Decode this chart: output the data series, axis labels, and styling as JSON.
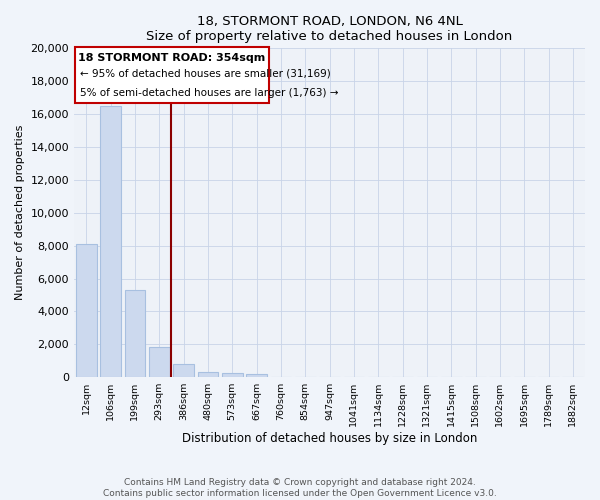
{
  "title": "18, STORMONT ROAD, LONDON, N6 4NL",
  "subtitle": "Size of property relative to detached houses in London",
  "xlabel": "Distribution of detached houses by size in London",
  "ylabel": "Number of detached properties",
  "bar_labels": [
    "12sqm",
    "106sqm",
    "199sqm",
    "293sqm",
    "386sqm",
    "480sqm",
    "573sqm",
    "667sqm",
    "760sqm",
    "854sqm",
    "947sqm",
    "1041sqm",
    "1134sqm",
    "1228sqm",
    "1321sqm",
    "1415sqm",
    "1508sqm",
    "1602sqm",
    "1695sqm",
    "1789sqm",
    "1882sqm"
  ],
  "bar_values": [
    8100,
    16500,
    5300,
    1850,
    800,
    300,
    250,
    200,
    0,
    0,
    0,
    0,
    0,
    0,
    0,
    0,
    0,
    0,
    0,
    0,
    0
  ],
  "bar_color": "#ccd9ee",
  "bar_edge_color": "#a8c0e0",
  "vline_x_index": 3.5,
  "vline_color": "#8b0000",
  "ylim": [
    0,
    20000
  ],
  "yticks": [
    0,
    2000,
    4000,
    6000,
    8000,
    10000,
    12000,
    14000,
    16000,
    18000,
    20000
  ],
  "annotation_title": "18 STORMONT ROAD: 354sqm",
  "annotation_line1": "← 95% of detached houses are smaller (31,169)",
  "annotation_line2": "5% of semi-detached houses are larger (1,763) →",
  "annotation_box_color": "#c00000",
  "footer_line1": "Contains HM Land Registry data © Crown copyright and database right 2024.",
  "footer_line2": "Contains public sector information licensed under the Open Government Licence v3.0.",
  "bg_color": "#f0f4fa",
  "plot_bg_color": "#eef2f8"
}
